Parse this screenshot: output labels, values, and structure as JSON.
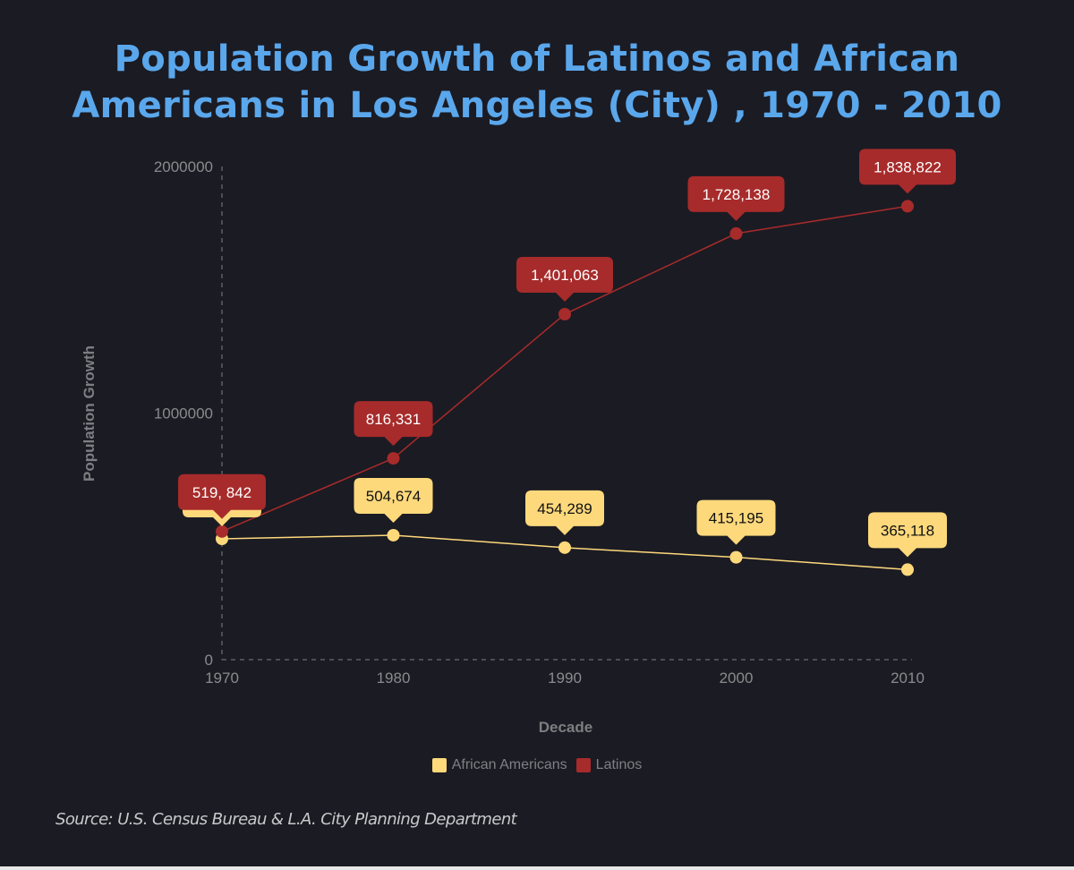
{
  "title_lines": [
    "Population Growth of Latinos and African",
    "Americans in Los Angeles (City) , 1970 - 2010"
  ],
  "source": "Source: U.S. Census Bureau & L.A. City Planning Department",
  "chart_data": {
    "type": "line",
    "title": "Population Growth of Latinos and African Americans in Los Angeles (City) , 1970 - 2010",
    "xlabel": "Decade",
    "ylabel": "Population Growth",
    "x": [
      "1970",
      "1980",
      "1990",
      "2000",
      "2010"
    ],
    "ylim": [
      0,
      2000000
    ],
    "yticks": [
      "0",
      "1000000",
      "2000000"
    ],
    "yticks_values": [
      0,
      1000000,
      2000000
    ],
    "grid": false,
    "legend_position": "bottom",
    "series": [
      {
        "name": "African Americans",
        "color": "#fdd97c",
        "label_text_color": "#111111",
        "values": [
          490000,
          504674,
          454289,
          415195,
          365118
        ],
        "labels": [
          null,
          "504,674",
          "454,289",
          "415,195",
          "365,118"
        ]
      },
      {
        "name": "Latinos",
        "color": "#a72b2b",
        "label_text_color": "#ffffff",
        "values": [
          519842,
          816331,
          1401063,
          1728138,
          1838822
        ],
        "labels": [
          "519, 842",
          "816,331",
          "1,401,063",
          "1,728,138",
          "1,838,822"
        ]
      }
    ]
  }
}
